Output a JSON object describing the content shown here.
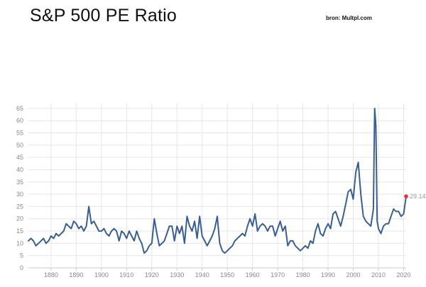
{
  "header": {
    "title": "S&P 500 PE Ratio",
    "source": "bron: Multpl.com"
  },
  "chart_data": {
    "type": "line",
    "title": "S&P 500 PE Ratio",
    "xlabel": "",
    "ylabel": "",
    "xlim": [
      1871,
      2021
    ],
    "ylim": [
      0,
      67
    ],
    "grid": true,
    "legend": "none",
    "line_color": "#3a5f8f",
    "marker_color": "#e0343a",
    "x_ticks": [
      1880,
      1890,
      1900,
      1910,
      1920,
      1930,
      1940,
      1950,
      1960,
      1970,
      1980,
      1990,
      2000,
      2010,
      2020
    ],
    "y_ticks": [
      0,
      5,
      10,
      15,
      20,
      25,
      30,
      35,
      40,
      45,
      50,
      55,
      60,
      65
    ],
    "end_label": "29.14",
    "series": [
      {
        "x": [
          1871,
          1872,
          1873,
          1874,
          1875,
          1876,
          1877,
          1878,
          1879,
          1880,
          1881,
          1882,
          1883,
          1884,
          1885,
          1886,
          1887,
          1888,
          1889,
          1890,
          1891,
          1892,
          1893,
          1894,
          1895,
          1896,
          1897,
          1898,
          1899,
          1900,
          1901,
          1902,
          1903,
          1904,
          1905,
          1906,
          1907,
          1908,
          1909,
          1910,
          1911,
          1912,
          1913,
          1914,
          1915,
          1916,
          1917,
          1918,
          1919,
          1920,
          1921,
          1922,
          1923,
          1924,
          1925,
          1926,
          1927,
          1928,
          1929,
          1930,
          1931,
          1932,
          1933,
          1934,
          1935,
          1936,
          1937,
          1938,
          1939,
          1940,
          1941,
          1942,
          1943,
          1944,
          1945,
          1946,
          1947,
          1948,
          1949,
          1950,
          1951,
          1952,
          1953,
          1954,
          1955,
          1956,
          1957,
          1958,
          1959,
          1960,
          1961,
          1962,
          1963,
          1964,
          1965,
          1966,
          1967,
          1968,
          1969,
          1970,
          1971,
          1972,
          1973,
          1974,
          1975,
          1976,
          1977,
          1978,
          1979,
          1980,
          1981,
          1982,
          1983,
          1984,
          1985,
          1986,
          1987,
          1988,
          1989,
          1990,
          1991,
          1992,
          1993,
          1994,
          1995,
          1996,
          1997,
          1998,
          1999,
          2000,
          2001,
          2002,
          2003,
          2004,
          2005,
          2006,
          2007,
          2008,
          2008.5,
          2009,
          2009.5,
          2010,
          2011,
          2012,
          2013,
          2014,
          2015,
          2016,
          2017,
          2018,
          2019,
          2020,
          2021
        ],
        "values": [
          11,
          12,
          11,
          9,
          10,
          11,
          12,
          10,
          11,
          13,
          12,
          14,
          13,
          14,
          15,
          18,
          17,
          16,
          19,
          18,
          16,
          17,
          15,
          17,
          25,
          18,
          19,
          17,
          15,
          15,
          16,
          14,
          13,
          15,
          16,
          15,
          11,
          15,
          14,
          12,
          15,
          13,
          11,
          15,
          12,
          10,
          6,
          7,
          9,
          10,
          20,
          14,
          9,
          10,
          11,
          14,
          17,
          17,
          11,
          17,
          14,
          17,
          10,
          21,
          17,
          15,
          19,
          12,
          21,
          13,
          11,
          9,
          11,
          13,
          16,
          21,
          10,
          7,
          6,
          7,
          8,
          9,
          11,
          12,
          13,
          14,
          13,
          17,
          20,
          17,
          22,
          15,
          17,
          18,
          17,
          15,
          17,
          17,
          13,
          16,
          19,
          15,
          17,
          9,
          11,
          11,
          9,
          8,
          7,
          8,
          9,
          8,
          11,
          10,
          15,
          18,
          14,
          13,
          16,
          18,
          16,
          22,
          23,
          20,
          17,
          21,
          26,
          31,
          32,
          28,
          39,
          43,
          30,
          21,
          19,
          18,
          17,
          24,
          65,
          58,
          19,
          16,
          14,
          17,
          18,
          18,
          21,
          24,
          23,
          23,
          21,
          22,
          29.14
        ]
      }
    ]
  }
}
